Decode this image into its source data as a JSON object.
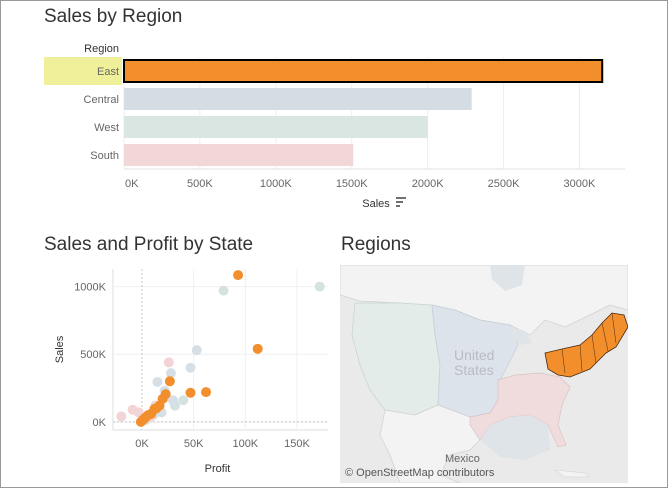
{
  "dashboard": {
    "sales_by_region": {
      "title": "Sales by Region",
      "header": "Region",
      "axis_label": "Sales",
      "sort_icon": "sort-descending-icon",
      "highlight_color": "#f0f09a"
    },
    "sales_profit_by_state": {
      "title": "Sales and Profit by State",
      "xlabel": "Profit",
      "ylabel": "Sales"
    },
    "regions_map": {
      "title": "Regions",
      "country_label": "United States",
      "country_label_line1": "United",
      "country_label_line2": "States",
      "mexico_label": "Mexico",
      "attribution": "© OpenStreetMap contributors",
      "highlight_color": "#f28e2b"
    }
  },
  "chart_data": [
    {
      "type": "bar",
      "orientation": "horizontal",
      "title": "Sales by Region",
      "categories": [
        "East",
        "Central",
        "West",
        "South"
      ],
      "values": [
        3150000,
        2290000,
        2000000,
        1510000
      ],
      "selected": "East",
      "colors": {
        "East": "#f28e2b",
        "Central": "#d5dde4",
        "West": "#d9e6e2",
        "South": "#f2d7d9"
      },
      "xlabel": "Sales",
      "xlim": [
        0,
        3300000
      ],
      "xticks": [
        0,
        500000,
        1000000,
        1500000,
        2000000,
        2500000,
        3000000
      ],
      "xtick_labels": [
        "0K",
        "500K",
        "1000K",
        "1500K",
        "2000K",
        "2500K",
        "3000K"
      ],
      "legend_header": "Region"
    },
    {
      "type": "scatter",
      "title": "Sales and Profit by State",
      "xlabel": "Profit",
      "ylabel": "Sales",
      "xlim": [
        -28000,
        180000
      ],
      "ylim": [
        -60000,
        1130000
      ],
      "xticks": [
        0,
        50000,
        100000,
        150000
      ],
      "xtick_labels": [
        "0K",
        "50K",
        "100K",
        "150K"
      ],
      "yticks": [
        0,
        500000,
        1000000
      ],
      "ytick_labels": [
        "0K",
        "500K",
        "1000K"
      ],
      "grid": true,
      "series": [
        {
          "name": "East",
          "color": "#f28e2b",
          "highlighted": true,
          "points": [
            [
              93000,
              1085000
            ],
            [
              112000,
              540000
            ],
            [
              62000,
              220000
            ],
            [
              47000,
              215000
            ],
            [
              27000,
              300000
            ],
            [
              23000,
              205000
            ],
            [
              20000,
              170000
            ],
            [
              17000,
              120000
            ],
            [
              14000,
              100000
            ],
            [
              12000,
              95000
            ],
            [
              9000,
              60000
            ],
            [
              6000,
              50000
            ],
            [
              3000,
              30000
            ],
            [
              1000,
              15000
            ],
            [
              -1000,
              0
            ]
          ]
        },
        {
          "name": "West",
          "color": "#d5e3e0",
          "highlighted": false,
          "points": [
            [
              172000,
              1000000
            ],
            [
              79000,
              970000
            ],
            [
              40000,
              160000
            ],
            [
              32000,
              120000
            ],
            [
              15000,
              100000
            ],
            [
              10000,
              55000
            ],
            [
              7000,
              40000
            ],
            [
              4000,
              15000
            ]
          ]
        },
        {
          "name": "Central",
          "color": "#d6dfe6",
          "highlighted": false,
          "points": [
            [
              53000,
              530000
            ],
            [
              47000,
              400000
            ],
            [
              28000,
              360000
            ],
            [
              15000,
              295000
            ],
            [
              22000,
              230000
            ],
            [
              30000,
              160000
            ],
            [
              19000,
              70000
            ],
            [
              11000,
              50000
            ],
            [
              4000,
              25000
            ]
          ]
        },
        {
          "name": "South",
          "color": "#f3d4d6",
          "highlighted": false,
          "points": [
            [
              26000,
              440000
            ],
            [
              -20000,
              40000
            ],
            [
              -9000,
              90000
            ],
            [
              -3000,
              70000
            ],
            [
              22000,
              180000
            ],
            [
              13000,
              120000
            ],
            [
              8000,
              35000
            ]
          ]
        }
      ]
    }
  ]
}
